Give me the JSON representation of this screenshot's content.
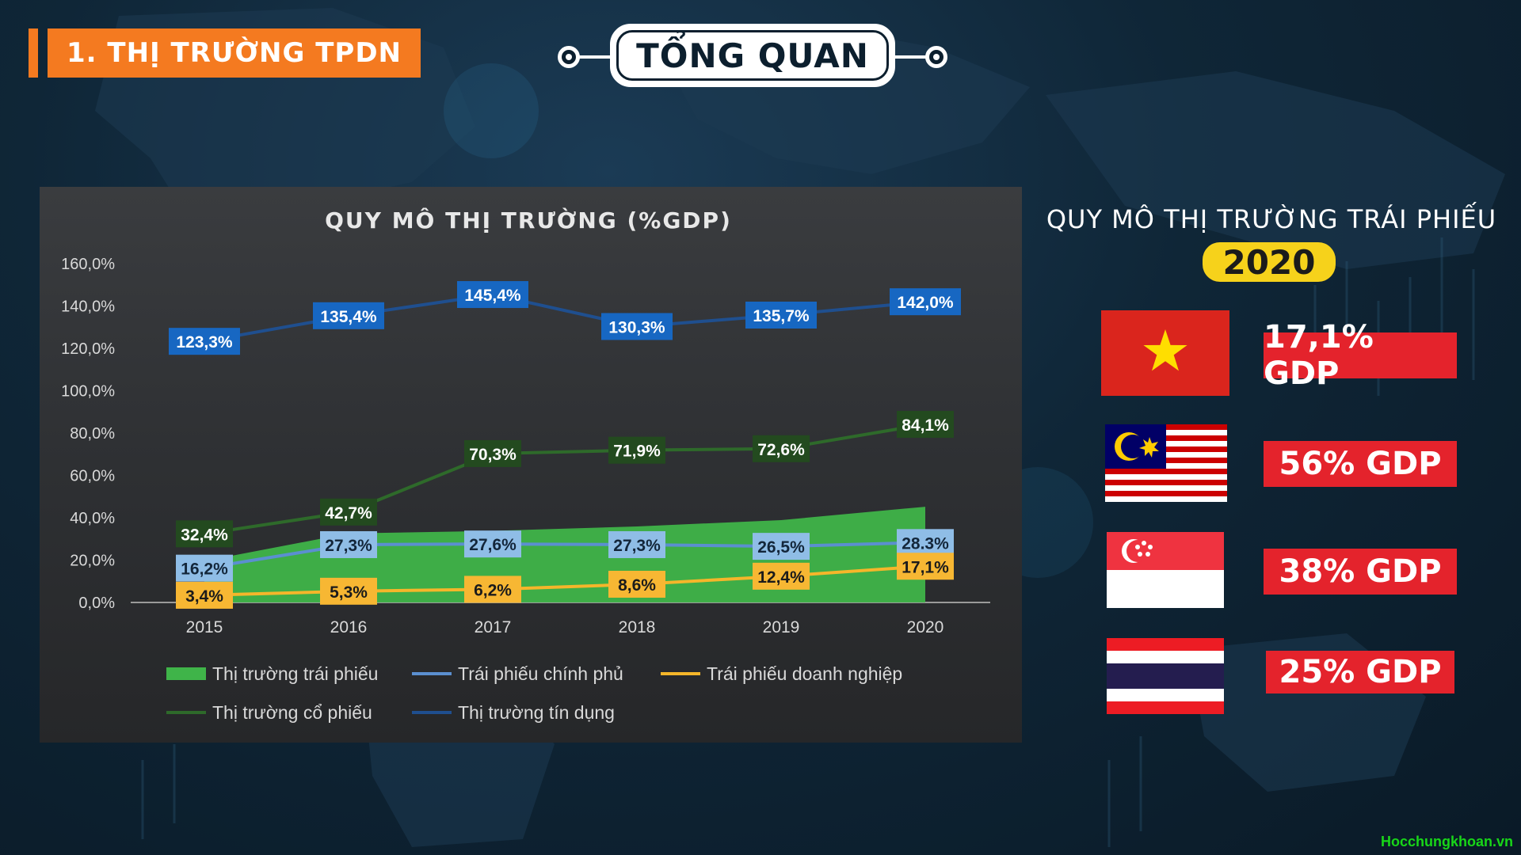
{
  "section_badge": "1. THỊ TRƯỜNG TPDN",
  "header_title": "TỔNG QUAN",
  "chart_data": {
    "type": "line",
    "title": "QUY MÔ THỊ TRƯỜNG (%GDP)",
    "categories": [
      "2015",
      "2016",
      "2017",
      "2018",
      "2019",
      "2020"
    ],
    "ylim": [
      0,
      160
    ],
    "yticks": [
      "0,0%",
      "20,0%",
      "40,0%",
      "60,0%",
      "80,0%",
      "100,0%",
      "120,0%",
      "140,0%",
      "160,0%"
    ],
    "grid": false,
    "legend_position": "bottom",
    "series": [
      {
        "name": "Thị trường trái phiếu",
        "type": "area",
        "color": "#3fb449",
        "values": [
          19.6,
          32.6,
          33.8,
          35.9,
          38.9,
          45.2
        ]
      },
      {
        "name": "Trái phiếu chính phủ",
        "type": "line",
        "color": "#5b8fd0",
        "values": [
          16.2,
          27.3,
          27.6,
          27.3,
          26.5,
          28.3
        ],
        "labels": [
          "16,2%",
          "27,3%",
          "27,6%",
          "27,3%",
          "26,5%",
          "28.3%"
        ],
        "label_bg": "#8fbde6",
        "label_color": "#13263a"
      },
      {
        "name": "Trái phiếu doanh nghiệp",
        "type": "line",
        "color": "#f5b62a",
        "values": [
          3.4,
          5.3,
          6.2,
          8.6,
          12.4,
          17.1
        ],
        "labels": [
          "3,4%",
          "5,3%",
          "6,2%",
          "8,6%",
          "12,4%",
          "17,1%"
        ],
        "label_bg": "#f7b733",
        "label_color": "#1b1b1b"
      },
      {
        "name": "Thị trường cổ phiếu",
        "type": "line",
        "color": "#2e6a2a",
        "values": [
          32.4,
          42.7,
          70.3,
          71.9,
          72.6,
          84.1
        ],
        "labels": [
          "32,4%",
          "42,7%",
          "70,3%",
          "71,9%",
          "72,6%",
          "84,1%"
        ],
        "label_bg": "#234a1f",
        "label_color": "#ffffff"
      },
      {
        "name": "Thị trường tín dụng",
        "type": "line",
        "color": "#1f4f8f",
        "values": [
          123.3,
          135.4,
          145.4,
          130.3,
          135.7,
          142.0
        ],
        "labels": [
          "123,3%",
          "135,4%",
          "145,4%",
          "130,3%",
          "135,7%",
          "142,0%"
        ],
        "label_bg": "#1767c2",
        "label_color": "#ffffff"
      }
    ]
  },
  "right_panel": {
    "title": "QUY MÔ THỊ TRƯỜNG TRÁI PHIẾU",
    "year": "2020",
    "countries": [
      {
        "flag": "vietnam-flag",
        "value": "17,1% GDP"
      },
      {
        "flag": "malaysia-flag",
        "value": "56% GDP"
      },
      {
        "flag": "singapore-flag",
        "value": "38% GDP"
      },
      {
        "flag": "thailand-flag",
        "value": "25% GDP"
      }
    ]
  },
  "watermark": "Hocchungkhoan.vn",
  "colors": {
    "accent_orange": "#f47a20",
    "highlight_red": "#e4232c",
    "year_yellow": "#f6d21b"
  }
}
